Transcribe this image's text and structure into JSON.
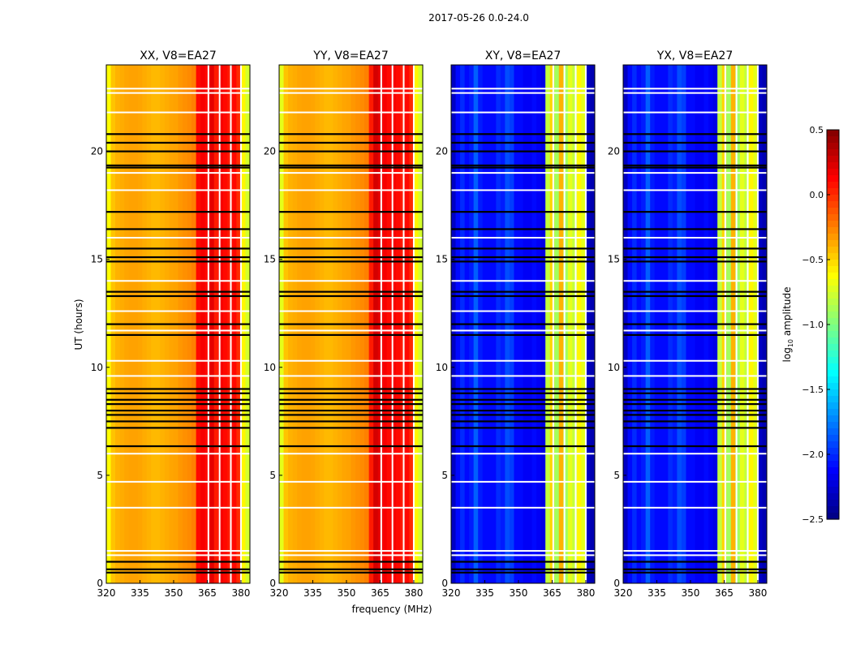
{
  "chart_data": {
    "type": "heatmap",
    "suptitle": "2017-05-26 0.0-24.0",
    "xlabel": "frequency (MHz)",
    "ylabel": "UT (hours)",
    "xlim": [
      320,
      384
    ],
    "ylim": [
      0,
      24
    ],
    "xticks": [
      "320",
      "335",
      "350",
      "365",
      "380"
    ],
    "xtick_values": [
      320,
      335,
      350,
      365,
      380
    ],
    "yticks": [
      "0",
      "5",
      "10",
      "15",
      "20"
    ],
    "ytick_values": [
      0,
      5,
      10,
      15,
      20
    ],
    "freq_bin_start": 320,
    "freq_bin_width": 2,
    "panels": [
      {
        "title": "XX, V8=EA27",
        "spectrum": [
          -0.62,
          -0.45,
          -0.4,
          -0.38,
          -0.36,
          -0.35,
          -0.35,
          -0.36,
          -0.38,
          -0.4,
          -0.42,
          -0.42,
          -0.4,
          -0.38,
          -0.36,
          -0.35,
          -0.32,
          -0.3,
          -0.28,
          -0.25,
          0.1,
          0.15,
          0.1,
          0.2,
          0.05,
          0.15,
          0.1,
          0.05,
          0.1,
          0.0,
          -0.6,
          -0.75
        ]
      },
      {
        "title": "YY, V8=EA27",
        "spectrum": [
          -0.7,
          -0.45,
          -0.4,
          -0.38,
          -0.36,
          -0.35,
          -0.35,
          -0.36,
          -0.38,
          -0.4,
          -0.42,
          -0.42,
          -0.4,
          -0.38,
          -0.36,
          -0.35,
          -0.32,
          -0.3,
          -0.28,
          -0.25,
          0.05,
          0.25,
          0.2,
          0.15,
          0.1,
          0.15,
          0.1,
          0.05,
          0.1,
          0.0,
          -0.6,
          -0.75
        ]
      },
      {
        "title": "XY, V8=EA27",
        "spectrum": [
          -2.3,
          -2.1,
          -2.0,
          -2.1,
          -2.05,
          -1.85,
          -2.05,
          -2.1,
          -2.1,
          -2.1,
          -2.0,
          -2.05,
          -1.9,
          -1.95,
          -2.1,
          -2.1,
          -2.15,
          -2.15,
          -2.1,
          -2.15,
          -2.2,
          -0.8,
          -0.5,
          -0.9,
          -0.4,
          -0.9,
          -0.7,
          -0.8,
          -0.6,
          -0.7,
          -2.3,
          -2.35
        ]
      },
      {
        "title": "YX, V8=EA27",
        "spectrum": [
          -2.3,
          -2.1,
          -2.0,
          -2.1,
          -2.05,
          -1.85,
          -2.05,
          -2.1,
          -2.1,
          -2.1,
          -2.0,
          -2.05,
          -1.9,
          -1.95,
          -2.1,
          -2.1,
          -2.15,
          -2.15,
          -2.1,
          -2.15,
          -2.2,
          -0.8,
          -0.5,
          -0.9,
          -0.4,
          -0.9,
          -0.7,
          -0.8,
          -0.6,
          -0.7,
          -2.3,
          -2.35
        ]
      }
    ],
    "flagged_channels_mhz": [
      365.5,
      370.5,
      375.5,
      380.0
    ],
    "flagged_times_black_hours": [
      0.5,
      0.65,
      1.0,
      6.35,
      7.2,
      7.5,
      7.8,
      8.0,
      8.3,
      8.5,
      8.8,
      9.0,
      11.5,
      12.0,
      13.3,
      13.5,
      14.9,
      15.1,
      15.5,
      16.4,
      17.2,
      19.25,
      19.35,
      20.0,
      20.4,
      20.8
    ],
    "flagged_times_white_hours": [
      1.3,
      1.5,
      3.5,
      4.7,
      6.0,
      9.6,
      10.3,
      11.7,
      12.6,
      14.0,
      16.0,
      18.2,
      19.0,
      21.8,
      22.7,
      22.9
    ],
    "colorbar": {
      "label": "log10 amplitude",
      "range": [
        -2.5,
        0.5
      ],
      "ticks": [
        "0.5",
        "0.0",
        "−0.5",
        "−1.0",
        "−1.5",
        "−2.0",
        "−2.5"
      ],
      "tick_values": [
        0.5,
        0.0,
        -0.5,
        -1.0,
        -1.5,
        -2.0,
        -2.5
      ],
      "colormap": "jet"
    }
  }
}
